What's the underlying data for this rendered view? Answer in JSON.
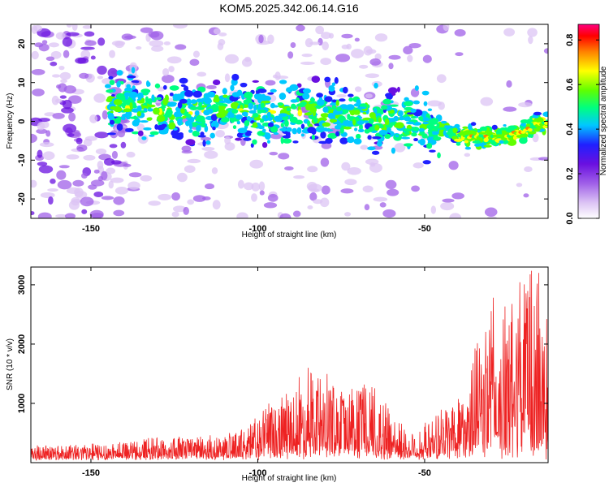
{
  "title": "KOM5.2025.342.06.14.G16",
  "chart_data": [
    {
      "type": "heatmap",
      "title": "KOM5.2025.342.06.14.G16",
      "xlabel": "Height of straight line (km)",
      "ylabel": "Frequency (Hz)",
      "xlim": [
        -168,
        -13
      ],
      "ylim": [
        -25,
        25
      ],
      "xticks": [
        -150,
        -100,
        -50
      ],
      "yticks": [
        -20,
        -10,
        0,
        10,
        20
      ],
      "colorbar": {
        "label": "Normalized spectral amplitude",
        "range": [
          0.0,
          0.87
        ],
        "ticks": [
          "0.0",
          "0.2",
          "0.4",
          "0.6",
          "0.8"
        ],
        "colors": [
          "#ffffff",
          "#dcc4f4",
          "#a060e8",
          "#6a10e0",
          "#2020ff",
          "#00c8ff",
          "#00ff80",
          "#60ff00",
          "#ffff00",
          "#ff8000",
          "#ff0000",
          "#ff0080"
        ]
      },
      "trace_center": [
        [
          -140,
          4
        ],
        [
          -130,
          3
        ],
        [
          -120,
          2
        ],
        [
          -110,
          3.5
        ],
        [
          -100,
          2.5
        ],
        [
          -90,
          2.5
        ],
        [
          -80,
          2
        ],
        [
          -70,
          1
        ],
        [
          -60,
          0.5
        ],
        [
          -50,
          -1
        ],
        [
          -45,
          -2
        ],
        [
          -40,
          -3.5
        ],
        [
          -35,
          -4
        ],
        [
          -30,
          -4
        ],
        [
          -25,
          -3.5
        ],
        [
          -20,
          -2.5
        ],
        [
          -15,
          -0.5
        ]
      ]
    },
    {
      "type": "line",
      "xlabel": "Height of straight line (km)",
      "ylabel": "SNR (10 * v/v)",
      "xlim": [
        -168,
        -13
      ],
      "ylim": [
        0,
        3300
      ],
      "xticks": [
        -150,
        -100,
        -50
      ],
      "yticks": [
        1000,
        2000,
        3000
      ],
      "color": "#ee2222",
      "envelope": [
        [
          -168,
          250
        ],
        [
          -150,
          270
        ],
        [
          -140,
          320
        ],
        [
          -130,
          380
        ],
        [
          -120,
          380
        ],
        [
          -110,
          380
        ],
        [
          -105,
          500
        ],
        [
          -95,
          950
        ],
        [
          -90,
          1150
        ],
        [
          -85,
          1500
        ],
        [
          -80,
          1300
        ],
        [
          -75,
          1150
        ],
        [
          -70,
          1300
        ],
        [
          -65,
          1200
        ],
        [
          -60,
          800
        ],
        [
          -55,
          450
        ],
        [
          -50,
          550
        ],
        [
          -45,
          800
        ],
        [
          -40,
          1200
        ],
        [
          -35,
          1700
        ],
        [
          -30,
          2600
        ],
        [
          -25,
          2300
        ],
        [
          -20,
          3200
        ],
        [
          -15,
          2900
        ],
        [
          -13,
          2200
        ]
      ]
    }
  ]
}
